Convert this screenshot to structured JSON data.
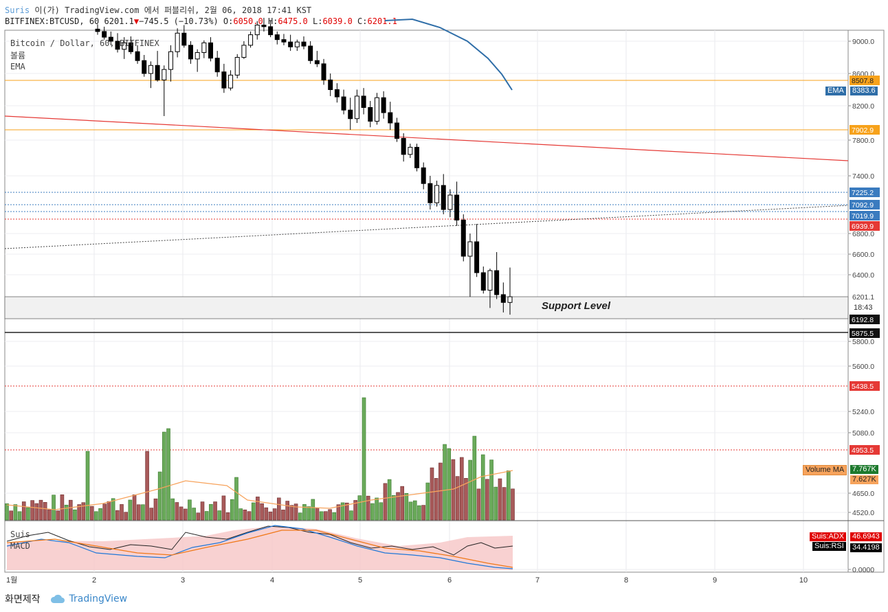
{
  "header": {
    "brand": "Suris",
    "publish_line": " 이(가) TradingView.com 에서 퍼블리쉬, 2월 06, 2018 17:41 KST",
    "symbol_line": "BITFINEX:BTCUSD, 60 6201.1",
    "change": "−745.5 (−10.73%)",
    "o_label": "O:",
    "o_val": "6050.0",
    "h_label": "H:",
    "h_val": "6475.0",
    "l_label": "L:",
    "l_val": "6039.0",
    "c_label": "C:",
    "c_val": "6201.1"
  },
  "legend": {
    "title": "Bitcoin / Dollar, 60, BITFINEX",
    "volume": "볼륨",
    "ema": "EMA",
    "osc_name": "Suis",
    "osc_macd": "MACD"
  },
  "annotation": "Support Level",
  "footer": {
    "made": "화면제작",
    "brand": "TradingView"
  },
  "tags": {
    "ema_label": "EMA",
    "ema_val": "8383.6",
    "vol_ma_label": "Volume MA",
    "vol_green": "7.767K",
    "vol_ma": "7.627K",
    "adx_label": "Suis:ADX",
    "adx_val": "46.6943",
    "rsi_label": "Suis:RSI",
    "rsi_val": "34.4198",
    "time_left": "18:43"
  },
  "colors": {
    "up": "#3c9b4a",
    "down": "#000000",
    "vol_up": "#6aaa5a",
    "vol_down": "#a85a5a",
    "orange": "#f7a21b",
    "red": "#e53935",
    "blue": "#3a7bbf",
    "ema": "#2f6ea8"
  },
  "chart_data": {
    "type": "candlestick",
    "symbol": "BITFINEX:BTCUSD",
    "x_tick_labels": [
      "1월",
      "2",
      "3",
      "4",
      "5",
      "6",
      "7",
      "8",
      "9",
      "10"
    ],
    "price_axis_ticks": [
      9000,
      8600,
      8200,
      7800,
      7400,
      6800,
      6600,
      6400,
      5800,
      5600,
      5240,
      5080,
      4650,
      4520,
      0.0
    ],
    "price_axis_labels": [
      "9000.0",
      "8600.0",
      "8200.0",
      "7800.0",
      "7400.0",
      "6800.0",
      "6600.0",
      "6400.0",
      "5800.0",
      "5600.0",
      "5240.0",
      "5080.0",
      "4650.0",
      "4520.0",
      "0.0000"
    ],
    "level_lines": [
      {
        "value": "8507.8",
        "color": "orange"
      },
      {
        "value": "7902.9",
        "color": "orange"
      },
      {
        "value": "7225.2",
        "color": "blue"
      },
      {
        "value": "7092.9",
        "color": "blue"
      },
      {
        "value": "7019.9",
        "color": "blue"
      },
      {
        "value": "6939.9",
        "color": "red"
      },
      {
        "value": "6201.1",
        "color": "gray"
      },
      {
        "value": "6192.8",
        "color": "black"
      },
      {
        "value": "5875.5",
        "color": "black"
      },
      {
        "value": "5438.5",
        "color": "red"
      },
      {
        "value": "4953.5",
        "color": "red"
      }
    ],
    "ohlc_approx": [
      [
        9150,
        9210,
        9080,
        9120
      ],
      [
        9120,
        9180,
        9020,
        9050
      ],
      [
        9050,
        9120,
        8950,
        9000
      ],
      [
        9000,
        9100,
        8860,
        8900
      ],
      [
        8900,
        9050,
        8780,
        8980
      ],
      [
        8980,
        9060,
        8840,
        8870
      ],
      [
        8870,
        8950,
        8720,
        8760
      ],
      [
        8760,
        8830,
        8560,
        8600
      ],
      [
        8600,
        8750,
        8420,
        8700
      ],
      [
        8700,
        8880,
        8500,
        8520
      ],
      [
        8520,
        8700,
        8080,
        8650
      ],
      [
        8650,
        8950,
        8500,
        8870
      ],
      [
        8870,
        9160,
        8800,
        9100
      ],
      [
        9100,
        9200,
        8920,
        8950
      ],
      [
        8950,
        9000,
        8720,
        8780
      ],
      [
        8780,
        8900,
        8620,
        8860
      ],
      [
        8860,
        9010,
        8790,
        8980
      ],
      [
        8980,
        9050,
        8750,
        8790
      ],
      [
        8790,
        8880,
        8560,
        8620
      ],
      [
        8620,
        8720,
        8360,
        8420
      ],
      [
        8420,
        8640,
        8390,
        8580
      ],
      [
        8580,
        8840,
        8540,
        8800
      ],
      [
        8800,
        9000,
        8780,
        8950
      ],
      [
        8950,
        9120,
        8920,
        9080
      ],
      [
        9080,
        9250,
        9020,
        9200
      ],
      [
        9200,
        9290,
        9120,
        9180
      ],
      [
        9180,
        9260,
        9050,
        9080
      ],
      [
        9080,
        9120,
        8960,
        9020
      ],
      [
        9020,
        9090,
        8950,
        8990
      ],
      [
        8990,
        9080,
        8880,
        8930
      ],
      [
        8930,
        9020,
        8880,
        8990
      ],
      [
        8990,
        9060,
        8900,
        8940
      ],
      [
        8940,
        9000,
        8720,
        8760
      ],
      [
        8760,
        8880,
        8680,
        8720
      ],
      [
        8720,
        8780,
        8460,
        8520
      ],
      [
        8520,
        8600,
        8320,
        8400
      ],
      [
        8400,
        8480,
        8240,
        8310
      ],
      [
        8310,
        8400,
        8100,
        8150
      ],
      [
        8150,
        8300,
        7920,
        8050
      ],
      [
        8050,
        8400,
        8000,
        8320
      ],
      [
        8320,
        8420,
        8100,
        8180
      ],
      [
        8180,
        8260,
        7950,
        8020
      ],
      [
        8020,
        8360,
        7980,
        8300
      ],
      [
        8300,
        8380,
        8050,
        8120
      ],
      [
        8120,
        8250,
        7920,
        8000
      ],
      [
        8000,
        8060,
        7780,
        7820
      ],
      [
        7820,
        7880,
        7560,
        7640
      ],
      [
        7640,
        7760,
        7600,
        7720
      ],
      [
        7720,
        7760,
        7450,
        7490
      ],
      [
        7490,
        7550,
        7260,
        7320
      ],
      [
        7320,
        7400,
        7050,
        7120
      ],
      [
        7120,
        7350,
        7080,
        7300
      ],
      [
        7300,
        7420,
        7000,
        7050
      ],
      [
        7050,
        7260,
        6970,
        7200
      ],
      [
        7200,
        7340,
        6880,
        6940
      ],
      [
        6940,
        7000,
        6530,
        6580
      ],
      [
        6580,
        6800,
        6200,
        6720
      ],
      [
        6720,
        6900,
        6380,
        6420
      ],
      [
        6420,
        6480,
        6230,
        6260
      ],
      [
        6260,
        6460,
        6100,
        6440
      ],
      [
        6440,
        6620,
        6180,
        6220
      ],
      [
        6220,
        6330,
        6060,
        6150
      ],
      [
        6150,
        6470,
        6040,
        6201
      ]
    ],
    "volume_bars": "approx. relative heights, green = up, red = down",
    "oscillators": [
      "ADX 46.6943",
      "RSI 34.4198"
    ]
  }
}
